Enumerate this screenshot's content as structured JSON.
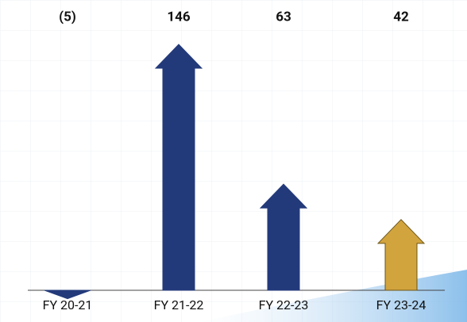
{
  "chart_data": {
    "type": "arrow-bar",
    "categories": [
      "FY 20-21",
      "FY 21-22",
      "FY 22-23",
      "FY 23-24"
    ],
    "values": [
      -5,
      146,
      63,
      42
    ],
    "value_labels": [
      "(5)",
      "146",
      "63",
      "42"
    ],
    "colors": [
      "#233a7a",
      "#233a7a",
      "#233a7a",
      "#d2a43e"
    ]
  }
}
